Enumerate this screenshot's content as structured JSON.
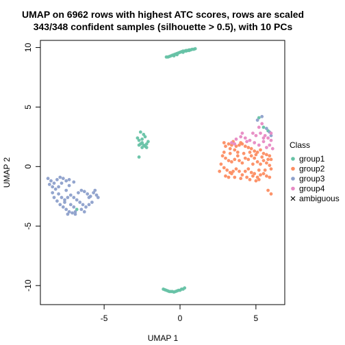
{
  "chart_data": {
    "type": "scatter",
    "title_line1": "UMAP on 6962 rows with highest ATC scores, rows are scaled",
    "title_line2": "343/348 confident samples (silhouette > 0.5), with 10 PCs",
    "xlabel": "UMAP 1",
    "ylabel": "UMAP 2",
    "xlim": [
      -9.2,
      6.9
    ],
    "ylim": [
      -11.6,
      10.6
    ],
    "xticks": [
      -5,
      0,
      5
    ],
    "yticks": [
      -10,
      -5,
      0,
      5,
      10
    ],
    "xtick_labels": [
      "-5",
      "0",
      "5"
    ],
    "ytick_labels": [
      "-10",
      "-5",
      "0",
      "5",
      "10"
    ],
    "grid": false,
    "legend": {
      "title": "Class",
      "position": "right",
      "entries": [
        {
          "label": "group1",
          "color": "#66C2A5",
          "marker": "circle"
        },
        {
          "label": "group2",
          "color": "#FC8D62",
          "marker": "circle"
        },
        {
          "label": "group3",
          "color": "#8DA0CB",
          "marker": "circle"
        },
        {
          "label": "group4",
          "color": "#E78AC3",
          "marker": "circle"
        },
        {
          "label": "ambiguous",
          "color": "#000000",
          "marker": "cross"
        }
      ]
    },
    "series": [
      {
        "name": "group1",
        "color": "#66C2A5",
        "points": [
          [
            -0.8,
            9.2
          ],
          [
            -0.6,
            9.3
          ],
          [
            -0.4,
            9.4
          ],
          [
            -0.2,
            9.5
          ],
          [
            0.0,
            9.6
          ],
          [
            0.2,
            9.7
          ],
          [
            0.4,
            9.75
          ],
          [
            0.6,
            9.8
          ],
          [
            0.8,
            9.85
          ],
          [
            1.0,
            9.9
          ],
          [
            -0.7,
            9.25
          ],
          [
            -0.5,
            9.35
          ],
          [
            -0.3,
            9.45
          ],
          [
            -0.1,
            9.55
          ],
          [
            0.1,
            9.65
          ],
          [
            0.3,
            9.7
          ],
          [
            0.5,
            9.75
          ],
          [
            0.7,
            9.8
          ],
          [
            -0.9,
            9.2
          ],
          [
            -0.4,
            9.3
          ],
          [
            0.2,
            9.6
          ],
          [
            0.6,
            9.75
          ],
          [
            0.9,
            9.85
          ],
          [
            -0.2,
            9.4
          ],
          [
            0.4,
            9.7
          ],
          [
            -2.6,
            2.9
          ],
          [
            -2.4,
            2.7
          ],
          [
            -2.5,
            2.3
          ],
          [
            -2.3,
            2.5
          ],
          [
            -2.7,
            2.2
          ],
          [
            -2.6,
            1.9
          ],
          [
            -2.4,
            1.8
          ],
          [
            -2.2,
            1.9
          ],
          [
            -2.5,
            1.6
          ],
          [
            -2.3,
            1.7
          ],
          [
            -2.7,
            1.8
          ],
          [
            -2.1,
            2.1
          ],
          [
            -2.5,
            2.0
          ],
          [
            -2.8,
            2.4
          ],
          [
            -2.2,
            1.6
          ],
          [
            -2.7,
            0.8
          ],
          [
            -1.1,
            -10.3
          ],
          [
            -0.9,
            -10.4
          ],
          [
            -0.7,
            -10.5
          ],
          [
            -0.5,
            -10.5
          ],
          [
            -0.3,
            -10.5
          ],
          [
            -0.1,
            -10.4
          ],
          [
            0.1,
            -10.3
          ],
          [
            0.3,
            -10.2
          ],
          [
            -0.8,
            -10.45
          ],
          [
            -0.6,
            -10.5
          ],
          [
            -0.4,
            -10.55
          ],
          [
            0.2,
            -10.3
          ],
          [
            -1.0,
            -10.35
          ],
          [
            0.0,
            -10.4
          ],
          [
            -0.2,
            -10.45
          ],
          [
            -6.8,
            -3.6
          ],
          [
            5.2,
            4.1
          ],
          [
            5.5,
            3.3
          ],
          [
            5.8,
            3.0
          ]
        ]
      },
      {
        "name": "group2",
        "color": "#FC8D62",
        "points": [
          [
            2.9,
            2.0
          ],
          [
            3.0,
            1.7
          ],
          [
            3.2,
            1.9
          ],
          [
            3.4,
            1.8
          ],
          [
            3.7,
            1.7
          ],
          [
            3.9,
            1.8
          ],
          [
            4.1,
            1.9
          ],
          [
            3.3,
            1.5
          ],
          [
            3.6,
            1.4
          ],
          [
            3.8,
            1.2
          ],
          [
            4.3,
            1.7
          ],
          [
            4.5,
            1.6
          ],
          [
            4.7,
            1.5
          ],
          [
            4.9,
            1.3
          ],
          [
            5.1,
            1.2
          ],
          [
            5.3,
            1.4
          ],
          [
            5.5,
            1.1
          ],
          [
            5.7,
            1.0
          ],
          [
            5.9,
            0.9
          ],
          [
            6.0,
            0.6
          ],
          [
            2.8,
            0.9
          ],
          [
            3.0,
            0.7
          ],
          [
            3.2,
            0.5
          ],
          [
            3.4,
            0.4
          ],
          [
            3.6,
            0.6
          ],
          [
            3.9,
            0.5
          ],
          [
            4.1,
            0.3
          ],
          [
            4.3,
            0.7
          ],
          [
            4.5,
            0.6
          ],
          [
            4.7,
            0.9
          ],
          [
            4.9,
            0.7
          ],
          [
            5.1,
            0.4
          ],
          [
            5.3,
            0.2
          ],
          [
            5.5,
            0.5
          ],
          [
            5.7,
            0.3
          ],
          [
            5.9,
            0.1
          ],
          [
            6.0,
            -0.2
          ],
          [
            2.7,
            0.2
          ],
          [
            2.9,
            -0.1
          ],
          [
            3.1,
            -0.3
          ],
          [
            3.3,
            -0.5
          ],
          [
            3.5,
            -0.4
          ],
          [
            3.7,
            -0.2
          ],
          [
            3.9,
            -0.4
          ],
          [
            4.1,
            -0.7
          ],
          [
            4.3,
            -0.4
          ],
          [
            4.5,
            -0.2
          ],
          [
            4.7,
            -0.5
          ],
          [
            4.9,
            -0.6
          ],
          [
            5.1,
            -0.9
          ],
          [
            5.3,
            -0.7
          ],
          [
            5.5,
            -0.6
          ],
          [
            5.7,
            -0.8
          ],
          [
            5.9,
            -0.9
          ],
          [
            3.0,
            -0.8
          ],
          [
            3.2,
            -0.9
          ],
          [
            3.4,
            -0.6
          ],
          [
            3.6,
            -0.9
          ],
          [
            4.0,
            -1.0
          ],
          [
            4.4,
            -0.9
          ],
          [
            4.6,
            -1.1
          ],
          [
            4.8,
            -0.8
          ],
          [
            5.0,
            -1.2
          ],
          [
            5.2,
            -1.1
          ],
          [
            5.6,
            -0.3
          ],
          [
            2.6,
            -0.4
          ],
          [
            3.8,
            0.9
          ],
          [
            4.2,
            1.1
          ],
          [
            4.6,
            1.2
          ],
          [
            5.0,
            1.0
          ],
          [
            5.4,
            0.8
          ],
          [
            5.8,
            0.6
          ],
          [
            3.5,
            2.1
          ],
          [
            4.0,
            2.0
          ],
          [
            5.8,
            -2.0
          ],
          [
            6.0,
            -2.3
          ],
          [
            2.9,
            1.2
          ],
          [
            3.3,
            1.1
          ],
          [
            4.8,
            0.2
          ],
          [
            5.2,
            -0.3
          ]
        ]
      },
      {
        "name": "group3",
        "color": "#8DA0CB",
        "points": [
          [
            -8.7,
            -1.0
          ],
          [
            -8.5,
            -1.2
          ],
          [
            -8.3,
            -1.4
          ],
          [
            -8.1,
            -1.1
          ],
          [
            -7.9,
            -0.9
          ],
          [
            -7.7,
            -1.0
          ],
          [
            -7.5,
            -1.2
          ],
          [
            -7.3,
            -1.1
          ],
          [
            -7.8,
            -1.4
          ],
          [
            -8.0,
            -1.7
          ],
          [
            -8.2,
            -1.9
          ],
          [
            -8.4,
            -2.2
          ],
          [
            -8.3,
            -2.6
          ],
          [
            -8.1,
            -2.9
          ],
          [
            -7.9,
            -3.2
          ],
          [
            -7.7,
            -3.4
          ],
          [
            -7.5,
            -3.6
          ],
          [
            -7.3,
            -3.8
          ],
          [
            -7.1,
            -3.9
          ],
          [
            -6.9,
            -3.8
          ],
          [
            -7.6,
            -2.8
          ],
          [
            -7.4,
            -2.6
          ],
          [
            -7.2,
            -2.4
          ],
          [
            -7.0,
            -2.6
          ],
          [
            -6.8,
            -2.8
          ],
          [
            -6.6,
            -3.0
          ],
          [
            -6.4,
            -3.2
          ],
          [
            -6.2,
            -3.4
          ],
          [
            -6.0,
            -3.2
          ],
          [
            -5.8,
            -3.0
          ],
          [
            -5.9,
            -2.5
          ],
          [
            -6.1,
            -2.3
          ],
          [
            -6.3,
            -2.1
          ],
          [
            -5.7,
            -2.2
          ],
          [
            -5.5,
            -2.4
          ],
          [
            -5.4,
            -2.6
          ],
          [
            -6.5,
            -2.0
          ],
          [
            -6.7,
            -2.2
          ],
          [
            -7.0,
            -3.4
          ],
          [
            -7.2,
            -3.2
          ],
          [
            -8.6,
            -1.5
          ],
          [
            -8.4,
            -1.7
          ],
          [
            -7.6,
            -3.0
          ],
          [
            -7.8,
            -2.6
          ],
          [
            -6.9,
            -4.0
          ],
          [
            -7.4,
            -4.0
          ],
          [
            -6.5,
            -3.6
          ],
          [
            -6.3,
            -3.8
          ],
          [
            -5.6,
            -2.0
          ],
          [
            -6.0,
            -2.6
          ],
          [
            -7.0,
            -1.3
          ],
          [
            -7.3,
            -1.6
          ],
          [
            -8.0,
            -2.3
          ],
          [
            -7.5,
            -2.0
          ],
          [
            5.1,
            3.9
          ],
          [
            5.4,
            4.2
          ],
          [
            5.7,
            3.2
          ],
          [
            5.9,
            2.9
          ],
          [
            6.0,
            2.6
          ]
        ]
      },
      {
        "name": "group4",
        "color": "#E78AC3",
        "points": [
          [
            3.4,
            2.0
          ],
          [
            3.7,
            2.3
          ],
          [
            4.0,
            2.5
          ],
          [
            4.3,
            2.4
          ],
          [
            4.6,
            2.2
          ],
          [
            4.9,
            2.0
          ],
          [
            5.2,
            1.8
          ],
          [
            5.5,
            2.1
          ],
          [
            5.8,
            2.4
          ],
          [
            6.0,
            2.2
          ],
          [
            5.0,
            2.6
          ],
          [
            5.3,
            2.8
          ],
          [
            5.6,
            2.6
          ],
          [
            5.9,
            1.8
          ],
          [
            6.1,
            1.5
          ],
          [
            5.4,
            3.6
          ],
          [
            5.2,
            3.3
          ],
          [
            4.8,
            2.8
          ],
          [
            4.4,
            2.1
          ],
          [
            4.1,
            2.8
          ],
          [
            3.6,
            1.9
          ],
          [
            5.7,
            1.6
          ],
          [
            6.0,
            2.8
          ],
          [
            5.5,
            2.4
          ]
        ]
      }
    ]
  }
}
